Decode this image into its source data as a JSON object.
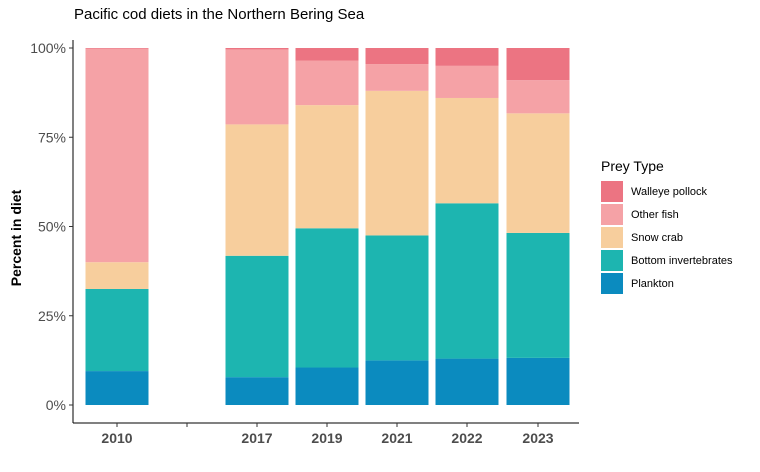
{
  "chart_data": {
    "type": "bar",
    "stacked": true,
    "title": "Pacific cod diets in the Northern Bering Sea",
    "ylabel": "Percent in diet",
    "xlabel": "",
    "ylim": [
      0,
      100
    ],
    "yticks": [
      "0%",
      "25%",
      "50%",
      "75%",
      "100%"
    ],
    "categories": [
      "2010",
      "2017",
      "2019",
      "2021",
      "2022",
      "2023"
    ],
    "legend_title": "Prey Type",
    "legend_position": "right",
    "series": [
      {
        "name": "Plankton",
        "color": "#0b8bbf",
        "values": [
          9.5,
          7.8,
          10.5,
          12.5,
          13.0,
          13.2
        ]
      },
      {
        "name": "Bottom invertebrates",
        "color": "#1db5b0",
        "values": [
          23.0,
          34.0,
          39.0,
          35.0,
          43.5,
          35.0
        ]
      },
      {
        "name": "Snow crab",
        "color": "#f7ce9d",
        "values": [
          7.5,
          36.8,
          34.5,
          40.5,
          29.5,
          33.5
        ]
      },
      {
        "name": "Other fish",
        "color": "#f5a2a6",
        "values": [
          59.8,
          21.0,
          12.5,
          7.5,
          9.0,
          9.3
        ]
      },
      {
        "name": "Walleye pollock",
        "color": "#ec7482",
        "values": [
          0.2,
          0.4,
          3.5,
          4.5,
          5.0,
          9.0
        ]
      }
    ]
  }
}
